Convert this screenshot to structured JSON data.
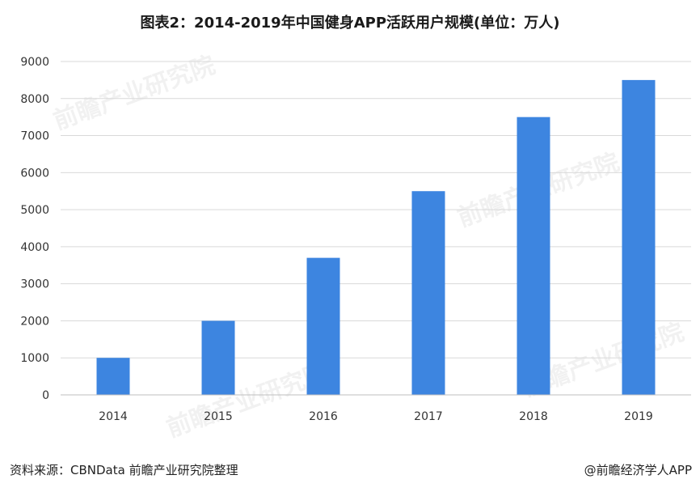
{
  "chart_data": {
    "type": "bar",
    "title": "图表2：2014-2019年中国健身APP活跃用户规模(单位：万人)",
    "categories": [
      "2014",
      "2015",
      "2016",
      "2017",
      "2018",
      "2019"
    ],
    "values": [
      1000,
      2000,
      3700,
      5500,
      7500,
      8500
    ],
    "ylim": [
      0,
      9000
    ],
    "yticks": [
      0,
      1000,
      2000,
      3000,
      4000,
      5000,
      6000,
      7000,
      8000,
      9000
    ],
    "grid": true,
    "bar_color": "#3d85e0"
  },
  "footer": {
    "source": "资料来源：CBNData 前瞻产业研究院整理",
    "credit": "@前瞻经济学人APP"
  }
}
